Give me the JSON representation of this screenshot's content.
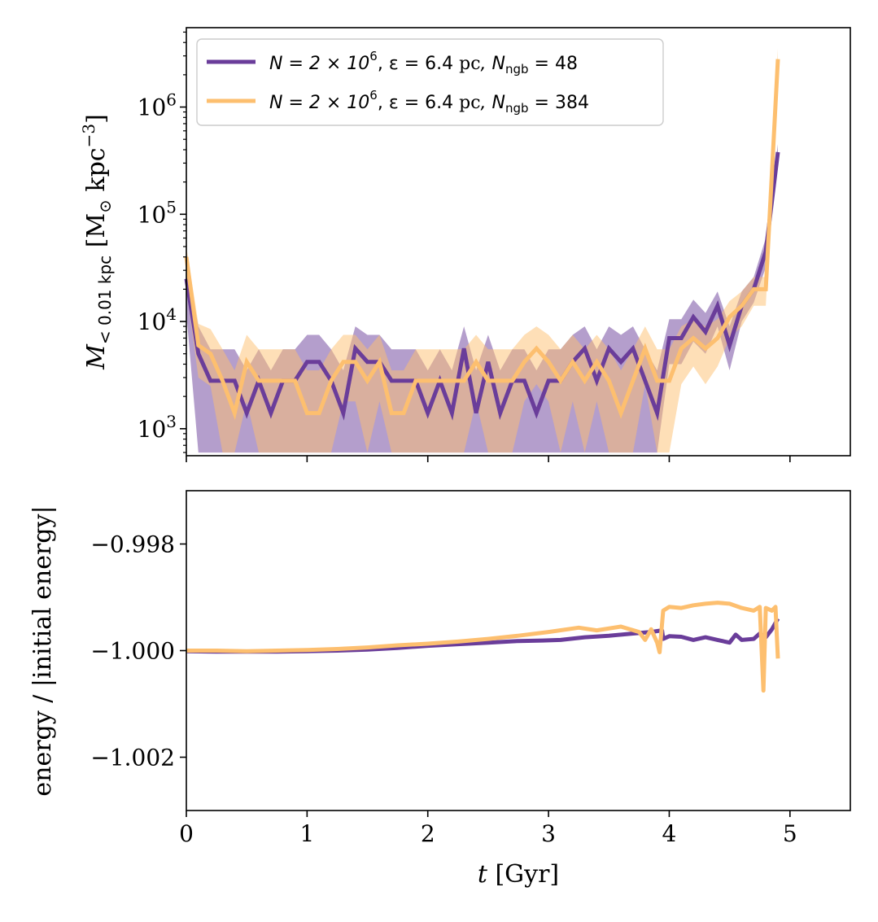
{
  "colors": {
    "purple": "#6a3d9a",
    "orange": "#fdbf6f"
  },
  "chart_data": [
    {
      "id": "density",
      "type": "line",
      "yscale": "log",
      "ylabel": "M<0.01 kpc [M⊙ kpc−3]",
      "ylabel_parts": {
        "sym": "M",
        "sub": "< 0.01 kpc",
        "unit_open": " [M",
        "unit_sub": "⊙",
        "unit_mid": " kpc",
        "unit_sup": "−3",
        "unit_close": "]"
      },
      "xlim": [
        0,
        5.5
      ],
      "ylim": [
        560,
        5500000
      ],
      "x_ticks": [
        0,
        1,
        2,
        3,
        4,
        5
      ],
      "y_ticks": [
        {
          "value": 1000,
          "base": "10",
          "exp": "3"
        },
        {
          "value": 10000,
          "base": "10",
          "exp": "4"
        },
        {
          "value": 100000,
          "base": "10",
          "exp": "5"
        },
        {
          "value": 1000000,
          "base": "10",
          "exp": "6"
        }
      ],
      "legend": {
        "position": "upper-left",
        "entries": [
          {
            "series": 0,
            "label": "N = 2 × 10^6, ε = 6.4 pc, N_ngb = 48",
            "parts": [
              "N = 2 × 10",
              "6",
              ", ε = 6.4 ",
              "pc",
              ", N",
              "ngb",
              " = 48"
            ]
          },
          {
            "series": 1,
            "label": "N = 2 × 10^6, ε = 6.4 pc, N_ngb = 384",
            "parts": [
              "N = 2 × 10",
              "6",
              ", ε = 6.4 ",
              "pc",
              ", N",
              "ngb",
              " = 384"
            ]
          }
        ]
      },
      "series": [
        {
          "name": "N_ngb = 48",
          "color": "#6a3d9a",
          "x": [
            0.0,
            0.1,
            0.2,
            0.3,
            0.4,
            0.5,
            0.6,
            0.7,
            0.8,
            0.9,
            1.0,
            1.1,
            1.2,
            1.3,
            1.4,
            1.5,
            1.6,
            1.7,
            1.8,
            1.9,
            2.0,
            2.1,
            2.2,
            2.3,
            2.4,
            2.5,
            2.6,
            2.7,
            2.8,
            2.9,
            3.0,
            3.1,
            3.2,
            3.3,
            3.4,
            3.5,
            3.6,
            3.7,
            3.8,
            3.9,
            4.0,
            4.1,
            4.2,
            4.3,
            4.4,
            4.5,
            4.6,
            4.7,
            4.8,
            4.9
          ],
          "y": [
            25000,
            5000,
            2800,
            2800,
            2800,
            1400,
            2800,
            1400,
            2800,
            2800,
            4200,
            4200,
            2800,
            1400,
            5600,
            4200,
            4200,
            2800,
            2800,
            2800,
            1400,
            2800,
            1400,
            5600,
            1400,
            4200,
            1400,
            2800,
            2800,
            1400,
            2800,
            2800,
            4200,
            5600,
            2800,
            5600,
            4200,
            5600,
            2800,
            1400,
            7000,
            7000,
            11000,
            8000,
            14000,
            6000,
            14000,
            20000,
            45000,
            380000
          ],
          "band_lo": [
            12000,
            600,
            600,
            600,
            600,
            600,
            600,
            600,
            600,
            600,
            600,
            600,
            600,
            600,
            600,
            600,
            600,
            600,
            600,
            600,
            600,
            600,
            600,
            600,
            600,
            600,
            600,
            600,
            600,
            600,
            600,
            600,
            600,
            600,
            600,
            600,
            600,
            600,
            600,
            600,
            4000,
            4000,
            6500,
            5000,
            9000,
            3500,
            10000,
            15000,
            32000,
            300000
          ],
          "band_hi": [
            36000,
            9000,
            5500,
            5500,
            5500,
            3500,
            5500,
            3500,
            5500,
            5500,
            7500,
            7500,
            5500,
            3500,
            9000,
            7500,
            7500,
            5500,
            5500,
            5500,
            3500,
            5500,
            3500,
            9000,
            3500,
            7500,
            3500,
            5500,
            5500,
            3500,
            5500,
            5500,
            7500,
            9000,
            5500,
            9000,
            7500,
            9000,
            5500,
            3500,
            10500,
            10500,
            16000,
            12000,
            19000,
            9000,
            19000,
            26000,
            60000,
            450000
          ]
        },
        {
          "name": "N_ngb = 384",
          "color": "#fdbf6f",
          "x": [
            0.0,
            0.1,
            0.2,
            0.3,
            0.4,
            0.5,
            0.6,
            0.7,
            0.8,
            0.9,
            1.0,
            1.1,
            1.2,
            1.3,
            1.4,
            1.5,
            1.6,
            1.7,
            1.8,
            1.9,
            2.0,
            2.1,
            2.2,
            2.3,
            2.4,
            2.5,
            2.6,
            2.7,
            2.8,
            2.9,
            3.0,
            3.1,
            3.2,
            3.3,
            3.4,
            3.5,
            3.6,
            3.7,
            3.8,
            3.9,
            4.0,
            4.1,
            4.2,
            4.3,
            4.4,
            4.5,
            4.6,
            4.7,
            4.8,
            4.9
          ],
          "y": [
            40000,
            6000,
            5000,
            2800,
            1400,
            4200,
            2800,
            2800,
            2800,
            2800,
            1400,
            1400,
            2800,
            4200,
            4200,
            2800,
            4200,
            1400,
            1400,
            2800,
            2800,
            2800,
            2800,
            2800,
            4200,
            2800,
            2800,
            2800,
            4200,
            5600,
            4200,
            2800,
            4200,
            2800,
            4200,
            2800,
            1400,
            2800,
            5600,
            2800,
            2800,
            5600,
            7000,
            5600,
            7000,
            11000,
            14000,
            20000,
            20000,
            2800000
          ],
          "band_lo": [
            20000,
            3000,
            2500,
            600,
            600,
            1800,
            600,
            600,
            600,
            600,
            600,
            600,
            600,
            1800,
            1800,
            600,
            1800,
            600,
            600,
            600,
            600,
            600,
            600,
            600,
            1800,
            600,
            600,
            600,
            1800,
            2600,
            1800,
            600,
            1800,
            600,
            1800,
            600,
            600,
            600,
            2600,
            600,
            600,
            2600,
            3800,
            2600,
            3800,
            7000,
            9000,
            14000,
            14000,
            2200000
          ],
          "band_hi": [
            50000,
            9500,
            8500,
            5500,
            3500,
            7500,
            5500,
            5500,
            5500,
            5500,
            3500,
            3500,
            5500,
            7500,
            7500,
            5500,
            7500,
            3500,
            3500,
            5500,
            5500,
            5500,
            5500,
            5500,
            7500,
            5500,
            5500,
            5500,
            7500,
            9000,
            7500,
            5500,
            7500,
            5500,
            7500,
            5500,
            3500,
            5500,
            9000,
            5500,
            5500,
            9000,
            10500,
            9000,
            10500,
            15500,
            19000,
            26000,
            26000,
            3500000
          ]
        }
      ]
    },
    {
      "id": "energy",
      "type": "line",
      "ylabel": "energy / |initial energy|",
      "xlabel": "t [Gyr]",
      "xlabel_parts": {
        "sym": "t",
        "rest": " [Gyr]"
      },
      "xlim": [
        0,
        5.5
      ],
      "ylim": [
        -1.003,
        -0.997
      ],
      "x_ticks": [
        0,
        1,
        2,
        3,
        4,
        5
      ],
      "x_tick_labels": [
        "0",
        "1",
        "2",
        "3",
        "4",
        "5"
      ],
      "y_ticks": [
        -0.998,
        -1.0,
        -1.002
      ],
      "y_tick_labels": [
        "−0.998",
        "−1.000",
        "−1.002"
      ],
      "series": [
        {
          "name": "N_ngb = 48",
          "color": "#6a3d9a",
          "x": [
            0.0,
            0.25,
            0.5,
            0.75,
            1.0,
            1.25,
            1.5,
            1.75,
            2.0,
            2.25,
            2.5,
            2.75,
            2.95,
            3.1,
            3.3,
            3.5,
            3.7,
            3.85,
            3.94,
            3.95,
            4.0,
            4.1,
            4.2,
            4.3,
            4.4,
            4.5,
            4.55,
            4.6,
            4.7,
            4.75,
            4.8,
            4.85,
            4.9
          ],
          "y": [
            -1.00001,
            -1.00002,
            -1.00002,
            -1.00002,
            -1.00001,
            -1.0,
            -0.99998,
            -0.99995,
            -0.99991,
            -0.99988,
            -0.99985,
            -0.99982,
            -0.99981,
            -0.9998,
            -0.99975,
            -0.99972,
            -0.99968,
            -0.99965,
            -0.99962,
            -0.99978,
            -0.99973,
            -0.99974,
            -0.9998,
            -0.99975,
            -0.9998,
            -0.99985,
            -0.9997,
            -0.9998,
            -0.99978,
            -0.99968,
            -0.99975,
            -0.9996,
            -0.9994
          ]
        },
        {
          "name": "N_ngb = 384",
          "color": "#fdbf6f",
          "x": [
            0.0,
            0.25,
            0.5,
            0.75,
            1.0,
            1.25,
            1.5,
            1.75,
            2.0,
            2.25,
            2.5,
            2.75,
            3.0,
            3.25,
            3.4,
            3.6,
            3.75,
            3.8,
            3.85,
            3.9,
            3.92,
            3.95,
            4.0,
            4.1,
            4.2,
            4.3,
            4.4,
            4.5,
            4.6,
            4.7,
            4.75,
            4.78,
            4.8,
            4.85,
            4.88,
            4.9
          ],
          "y": [
            -1.0,
            -1.0,
            -1.00001,
            -1.0,
            -0.99999,
            -0.99997,
            -0.99994,
            -0.9999,
            -0.99987,
            -0.99983,
            -0.99978,
            -0.99972,
            -0.99965,
            -0.99957,
            -0.99962,
            -0.99955,
            -0.99965,
            -0.9998,
            -0.9996,
            -0.99985,
            -1.00003,
            -0.99925,
            -0.99918,
            -0.9992,
            -0.99915,
            -0.99912,
            -0.9991,
            -0.99912,
            -0.9992,
            -0.99925,
            -0.99918,
            -1.00075,
            -0.9992,
            -0.99925,
            -0.99918,
            -1.00015
          ]
        }
      ]
    }
  ]
}
